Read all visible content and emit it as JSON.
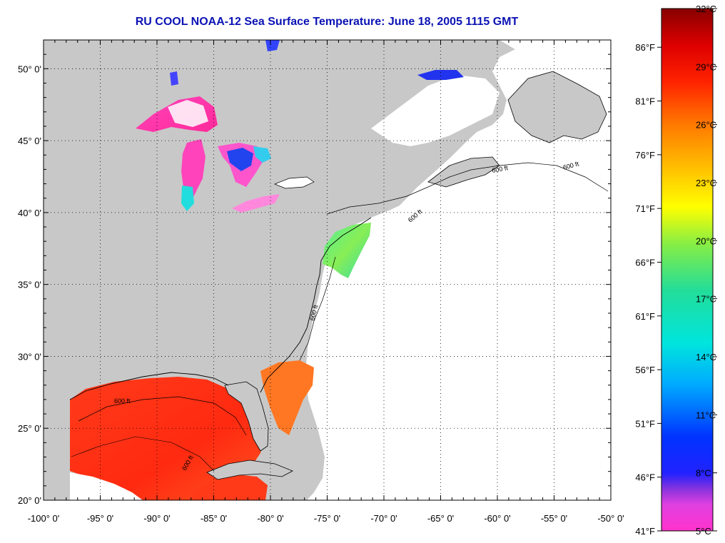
{
  "title": "RU COOL  NOAA-12  Sea Surface Temperature:  June 18, 2005 1115 GMT",
  "map": {
    "lon_range": [
      -100,
      -50
    ],
    "lat_range": [
      20,
      52
    ],
    "x_ticks": [
      {
        "value": -100,
        "label": "-100° 0'"
      },
      {
        "value": -95,
        "label": "-95° 0'"
      },
      {
        "value": -90,
        "label": "-90° 0'"
      },
      {
        "value": -85,
        "label": "-85° 0'"
      },
      {
        "value": -80,
        "label": "-80° 0'"
      },
      {
        "value": -75,
        "label": "-75° 0'"
      },
      {
        "value": -70,
        "label": "-70° 0'"
      },
      {
        "value": -65,
        "label": "-65° 0'"
      },
      {
        "value": -60,
        "label": "-60° 0'"
      },
      {
        "value": -55,
        "label": "-55° 0'"
      },
      {
        "value": -50,
        "label": "-50° 0'"
      }
    ],
    "y_ticks": [
      {
        "value": 20,
        "label": "20° 0'"
      },
      {
        "value": 25,
        "label": "25° 0'"
      },
      {
        "value": 30,
        "label": "30° 0'"
      },
      {
        "value": 35,
        "label": "35° 0'"
      },
      {
        "value": 40,
        "label": "40° 0'"
      },
      {
        "value": 45,
        "label": "45° 0'"
      },
      {
        "value": 50,
        "label": "50° 0'"
      }
    ],
    "contour_label": "600 ft",
    "grid": "dotted",
    "land_color": "#c8c8c8",
    "ocean_color": "#ffffff"
  },
  "colorbar": {
    "range_c": [
      5,
      32
    ],
    "celsius_labels": [
      "32°C",
      "29°C",
      "26°C",
      "23°C",
      "20°C",
      "17°C",
      "14°C",
      "11°C",
      "8°C",
      "5°C"
    ],
    "fahrenheit_labels": [
      "86°F",
      "81°F",
      "76°F",
      "71°F",
      "66°F",
      "61°F",
      "56°F",
      "51°F",
      "46°F",
      "41°F"
    ],
    "fahrenheit_values": [
      86,
      81,
      76,
      71,
      66,
      61,
      56,
      51,
      46,
      41
    ]
  }
}
